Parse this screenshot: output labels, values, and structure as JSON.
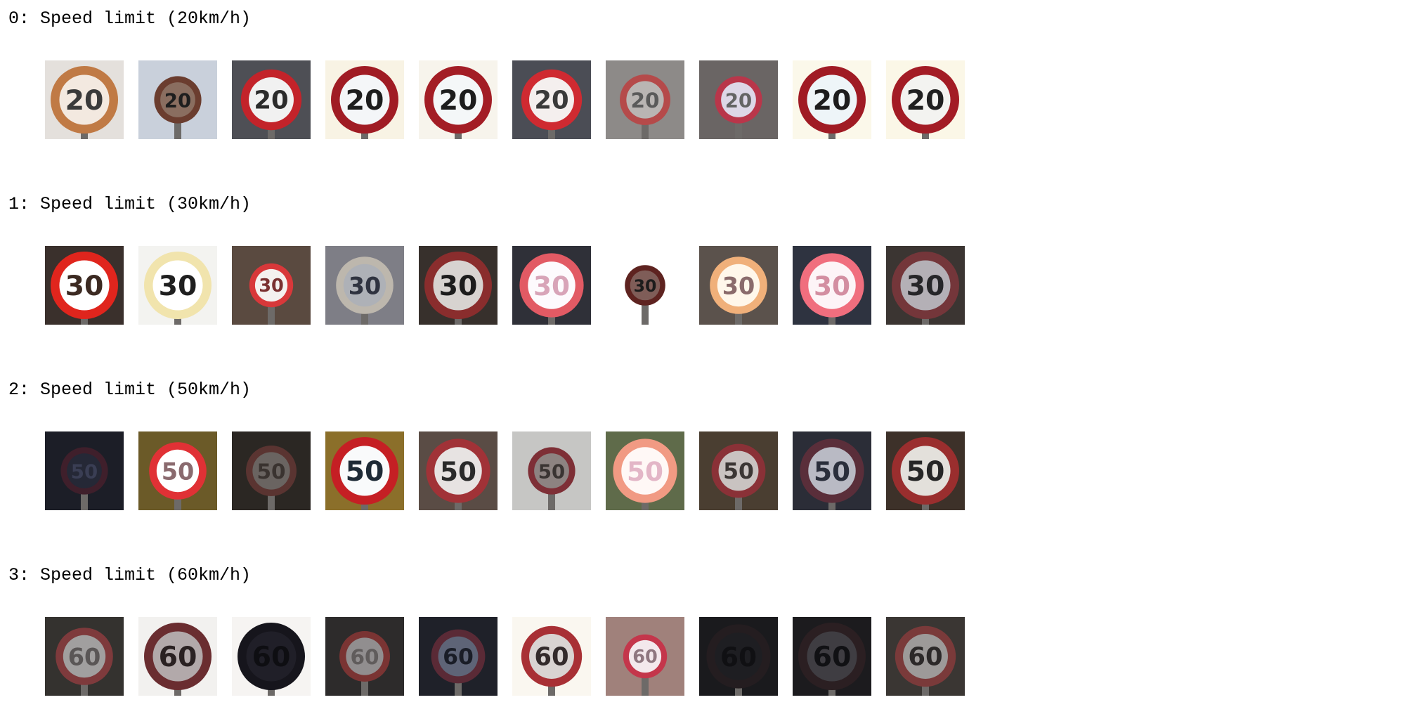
{
  "classes": [
    {
      "title": "0: Speed limit (20km/h)",
      "sign_number": "20",
      "thumbnails": [
        {
          "bg": "#e4e0dc",
          "ring": "#c07a45",
          "face": "#f3e9e0",
          "digits": "#3a3a3a",
          "level": 1.0
        },
        {
          "bg": "#c9d0db",
          "ring": "#6b3d2f",
          "face": "#8a6e60",
          "digits": "#1e1e1e",
          "level": 0.7
        },
        {
          "bg": "#4e4f55",
          "ring": "#c3232a",
          "face": "#f1f1f1",
          "digits": "#2b2b2b",
          "level": 0.9
        },
        {
          "bg": "#f8f3e4",
          "ring": "#a01c24",
          "face": "#f4f6f8",
          "digits": "#1d1d1d",
          "level": 1.0
        },
        {
          "bg": "#f7f4ec",
          "ring": "#a31d25",
          "face": "#f4f7f8",
          "digits": "#1d1d1d",
          "level": 1.0
        },
        {
          "bg": "#4b4d55",
          "ring": "#cf2a31",
          "face": "#f4efee",
          "digits": "#3a3a3a",
          "level": 0.9
        },
        {
          "bg": "#8d8a88",
          "ring": "#b54a4a",
          "face": "#b9b5b3",
          "digits": "#5a5a5a",
          "level": 0.75
        },
        {
          "bg": "#6a6564",
          "ring": "#b9364a",
          "face": "#ddd7e7",
          "digits": "#646464",
          "level": 0.7
        },
        {
          "bg": "#fbf8ea",
          "ring": "#a01b24",
          "face": "#eef5f8",
          "digits": "#1d1d1d",
          "level": 1.0
        },
        {
          "bg": "#fbf7e7",
          "ring": "#a31c25",
          "face": "#f3f3f0",
          "digits": "#202020",
          "level": 1.0
        }
      ]
    },
    {
      "title": "1: Speed limit (30km/h)",
      "sign_number": "30",
      "thumbnails": [
        {
          "bg": "#3a302c",
          "ring": "#e0251d",
          "face": "#ffffff",
          "digits": "#3c2a22",
          "level": 1.0
        },
        {
          "bg": "#f3f3f0",
          "ring": "#f1e4ad",
          "face": "#ffffff",
          "digits": "#1f1f1f",
          "level": 1.0
        },
        {
          "bg": "#5a4a40",
          "ring": "#d8383a",
          "face": "#f4f1ef",
          "digits": "#7a3030",
          "level": 0.65
        },
        {
          "bg": "#7e7e86",
          "ring": "#bdb7ad",
          "face": "#aeb1b7",
          "digits": "#2f3340",
          "level": 0.85
        },
        {
          "bg": "#37302c",
          "ring": "#8a2d2d",
          "face": "#d7d3d0",
          "digits": "#1c1c1c",
          "level": 1.0
        },
        {
          "bg": "#2f3038",
          "ring": "#e25a64",
          "face": "#fdfafd",
          "digits": "#d8a4b8",
          "level": 0.95
        },
        {
          "bg": "#ffffff",
          "ring": "#5e2320",
          "face": "#7f5d58",
          "digits": "#1c1c1c",
          "level": 0.6
        },
        {
          "bg": "#5b524c",
          "ring": "#f0b07a",
          "face": "#fff7ea",
          "digits": "#8a6b6b",
          "level": 0.85
        },
        {
          "bg": "#2e3340",
          "ring": "#f06e7e",
          "face": "#fdf4f7",
          "digits": "#d38ea1",
          "level": 0.95
        },
        {
          "bg": "#3b3532",
          "ring": "#74363a",
          "face": "#b4b0b6",
          "digits": "#262629",
          "level": 1.0
        }
      ]
    },
    {
      "title": "2: Speed limit (50km/h)",
      "sign_number": "50",
      "thumbnails": [
        {
          "bg": "#1c1e27",
          "ring": "#3f1f2b",
          "face": "#252836",
          "digits": "#3a3e54",
          "level": 0.7
        },
        {
          "bg": "#6b5a28",
          "ring": "#e03135",
          "face": "#ffffff",
          "digits": "#8a6a6e",
          "level": 0.85
        },
        {
          "bg": "#2b2723",
          "ring": "#5a3431",
          "face": "#6a6461",
          "digits": "#3a3330",
          "level": 0.75
        },
        {
          "bg": "#8b6f2a",
          "ring": "#c51f24",
          "face": "#f9fafb",
          "digits": "#1e2a36",
          "level": 1.0
        },
        {
          "bg": "#5a4c45",
          "ring": "#a13237",
          "face": "#e7e3e2",
          "digits": "#2a2a2a",
          "level": 0.95
        },
        {
          "bg": "#c6c6c4",
          "ring": "#7e2f36",
          "face": "#8d8381",
          "digits": "#3a3432",
          "level": 0.7
        },
        {
          "bg": "#5f6b4a",
          "ring": "#f19a83",
          "face": "#fff8f6",
          "digits": "#e3b6c7",
          "level": 0.95
        },
        {
          "bg": "#4a3e31",
          "ring": "#8a3137",
          "face": "#c9c3c1",
          "digits": "#3b3634",
          "level": 0.8
        },
        {
          "bg": "#2b2d37",
          "ring": "#5a2e3a",
          "face": "#b9bac4",
          "digits": "#2a2e3b",
          "level": 0.95
        },
        {
          "bg": "#3d3129",
          "ring": "#9a2e2e",
          "face": "#e3e0db",
          "digits": "#262626",
          "level": 1.0
        }
      ]
    },
    {
      "title": "3: Speed limit (60km/h)",
      "sign_number": "60",
      "thumbnails": [
        {
          "bg": "#34322f",
          "ring": "#7e3a3c",
          "face": "#a19f9f",
          "digits": "#5a5656",
          "level": 0.85
        },
        {
          "bg": "#f2f1ef",
          "ring": "#6a2d30",
          "face": "#b2a9aa",
          "digits": "#2a2122",
          "level": 1.0
        },
        {
          "bg": "#f6f4f2",
          "ring": "#16151c",
          "face": "#201f28",
          "digits": "#0e0e12",
          "level": 1.0
        },
        {
          "bg": "#2d2b2b",
          "ring": "#7a3433",
          "face": "#918e8f",
          "digits": "#605c5c",
          "level": 0.75
        },
        {
          "bg": "#1f2129",
          "ring": "#5a2a36",
          "face": "#5e6477",
          "digits": "#1a1d27",
          "level": 0.8
        },
        {
          "bg": "#faf7f0",
          "ring": "#a83035",
          "face": "#d9d4d2",
          "digits": "#332b2b",
          "level": 0.9
        },
        {
          "bg": "#a0817b",
          "ring": "#c4364b",
          "face": "#f3e8ec",
          "digits": "#8f7780",
          "level": 0.65
        },
        {
          "bg": "#1a1a1d",
          "ring": "#241d20",
          "face": "#1e1e22",
          "digits": "#101013",
          "level": 0.95
        },
        {
          "bg": "#1c1b1e",
          "ring": "#2b1f22",
          "face": "#3f3d42",
          "digits": "#111114",
          "level": 1.0
        },
        {
          "bg": "#3a3633",
          "ring": "#7a3a3a",
          "face": "#9d9a99",
          "digits": "#2c2929",
          "level": 0.9
        }
      ]
    }
  ]
}
